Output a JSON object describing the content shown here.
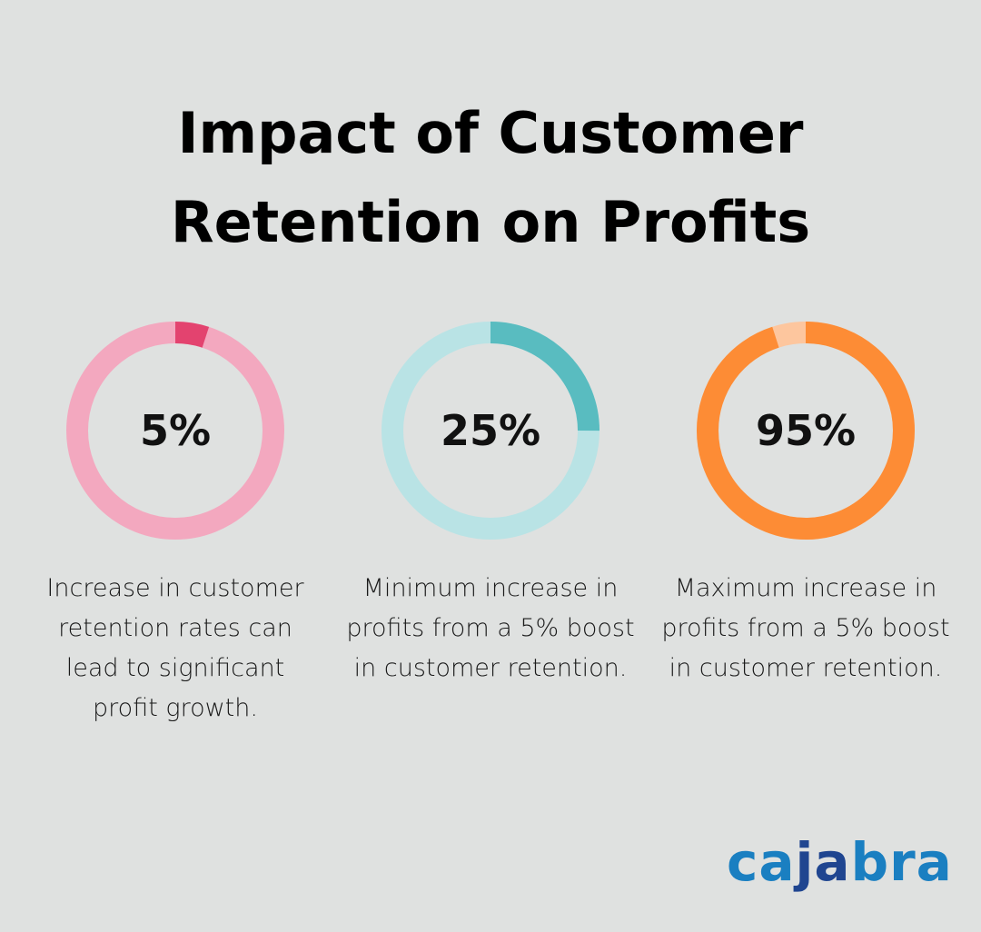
{
  "title": {
    "line1": "Impact of Customer",
    "line2": "Retention on Profits"
  },
  "chart_data": [
    {
      "type": "pie",
      "variant": "donut",
      "value": 5,
      "label": "5%",
      "description": "Increase in customer retention rates can lead to significant profit growth.",
      "colors": {
        "fill": "#e3436f",
        "track": "#f3a8bf"
      }
    },
    {
      "type": "pie",
      "variant": "donut",
      "value": 25,
      "label": "25%",
      "description": "Minimum increase in profits from a 5% boost in customer retention.",
      "colors": {
        "fill": "#59bcc0",
        "track": "#b9e3e5"
      }
    },
    {
      "type": "pie",
      "variant": "donut",
      "value": 95,
      "label": "95%",
      "description": "Maximum increase in profits from a 5% boost in customer retention.",
      "colors": {
        "fill": "#fd8c35",
        "track": "#fdc69e"
      }
    }
  ],
  "logo": {
    "part1": "ca",
    "part2": "ja",
    "part3": "bra",
    "colors": {
      "light": "#1a7fc1",
      "dark": "#1f4590"
    }
  }
}
